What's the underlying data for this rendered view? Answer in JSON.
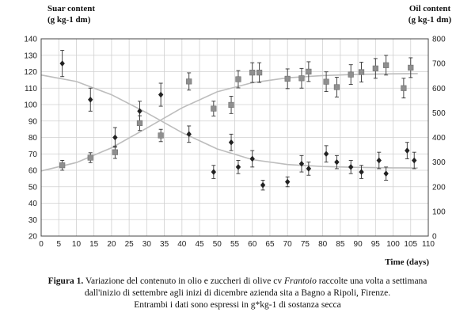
{
  "chart_data": {
    "type": "scatter",
    "left_axis_title": [
      "Suar content",
      "(g kg-1 dm)"
    ],
    "right_axis_title": [
      "Oil content",
      "(g kg-1 dm)"
    ],
    "x_axis_title": "Time (days)",
    "xlim": [
      0,
      110
    ],
    "x_ticks": [
      0,
      5,
      10,
      15,
      20,
      25,
      30,
      35,
      40,
      45,
      50,
      55,
      60,
      65,
      70,
      75,
      80,
      85,
      90,
      95,
      100,
      105,
      110
    ],
    "ylim_left": [
      20,
      140
    ],
    "y_ticks_left": [
      20,
      30,
      40,
      50,
      60,
      70,
      80,
      90,
      100,
      110,
      120,
      130,
      140
    ],
    "ylim_right": [
      0,
      800
    ],
    "y_ticks_right": [
      0,
      100,
      200,
      300,
      400,
      500,
      600,
      700,
      800
    ],
    "grid": true,
    "series": [
      {
        "axis": "left",
        "marker": "diamond",
        "color": "#222222",
        "points": [
          {
            "x": 6,
            "y": 125,
            "err": 8
          },
          {
            "x": 14,
            "y": 103,
            "err": 7
          },
          {
            "x": 21,
            "y": 80,
            "err": 6
          },
          {
            "x": 28,
            "y": 96,
            "err": 6
          },
          {
            "x": 34,
            "y": 106,
            "err": 7
          },
          {
            "x": 42,
            "y": 82,
            "err": 5
          },
          {
            "x": 49,
            "y": 59,
            "err": 4
          },
          {
            "x": 54,
            "y": 77,
            "err": 5
          },
          {
            "x": 56,
            "y": 62,
            "err": 4
          },
          {
            "x": 60,
            "y": 67,
            "err": 5
          },
          {
            "x": 63,
            "y": 51,
            "err": 3
          },
          {
            "x": 70,
            "y": 53,
            "err": 3
          },
          {
            "x": 74,
            "y": 64,
            "err": 5
          },
          {
            "x": 76,
            "y": 61,
            "err": 4
          },
          {
            "x": 81,
            "y": 70,
            "err": 5
          },
          {
            "x": 84,
            "y": 65,
            "err": 4
          },
          {
            "x": 88,
            "y": 62,
            "err": 4
          },
          {
            "x": 91,
            "y": 59,
            "err": 4
          },
          {
            "x": 96,
            "y": 66,
            "err": 5
          },
          {
            "x": 98,
            "y": 58,
            "err": 4
          },
          {
            "x": 104,
            "y": 72,
            "err": 5
          },
          {
            "x": 106,
            "y": 66,
            "err": 5
          }
        ],
        "fit": [
          [
            0,
            118
          ],
          [
            10,
            114
          ],
          [
            20,
            106
          ],
          [
            30,
            95
          ],
          [
            40,
            83
          ],
          [
            50,
            73
          ],
          [
            60,
            66.5
          ],
          [
            70,
            63.5
          ],
          [
            80,
            62.3
          ],
          [
            90,
            61.8
          ],
          [
            100,
            61.5
          ],
          [
            107,
            61.4
          ]
        ]
      },
      {
        "axis": "right",
        "marker": "square",
        "color": "#8f8f8f",
        "points": [
          {
            "x": 6,
            "y": 287,
            "err": 20
          },
          {
            "x": 14,
            "y": 318,
            "err": 20
          },
          {
            "x": 21,
            "y": 340,
            "err": 25
          },
          {
            "x": 28,
            "y": 458,
            "err": 30
          },
          {
            "x": 34,
            "y": 408,
            "err": 25
          },
          {
            "x": 42,
            "y": 627,
            "err": 35
          },
          {
            "x": 49,
            "y": 517,
            "err": 30
          },
          {
            "x": 54,
            "y": 532,
            "err": 35
          },
          {
            "x": 56,
            "y": 636,
            "err": 35
          },
          {
            "x": 60,
            "y": 663,
            "err": 40
          },
          {
            "x": 62,
            "y": 663,
            "err": 40
          },
          {
            "x": 70,
            "y": 638,
            "err": 40
          },
          {
            "x": 74,
            "y": 640,
            "err": 40
          },
          {
            "x": 76,
            "y": 667,
            "err": 40
          },
          {
            "x": 81,
            "y": 626,
            "err": 40
          },
          {
            "x": 84,
            "y": 604,
            "err": 40
          },
          {
            "x": 88,
            "y": 655,
            "err": 40
          },
          {
            "x": 91,
            "y": 665,
            "err": 40
          },
          {
            "x": 95,
            "y": 680,
            "err": 40
          },
          {
            "x": 98,
            "y": 693,
            "err": 40
          },
          {
            "x": 103,
            "y": 600,
            "err": 40
          },
          {
            "x": 105,
            "y": 683,
            "err": 40
          }
        ],
        "fit": [
          [
            0,
            264
          ],
          [
            10,
            298
          ],
          [
            20,
            358
          ],
          [
            30,
            438
          ],
          [
            40,
            520
          ],
          [
            50,
            585
          ],
          [
            60,
            622
          ],
          [
            70,
            642
          ],
          [
            80,
            651
          ],
          [
            90,
            656
          ],
          [
            100,
            658
          ],
          [
            107,
            659
          ]
        ]
      }
    ]
  },
  "caption": {
    "label": "Figura 1.",
    "line1_a": " Variazione del contenuto in olio e zuccheri di olive cv ",
    "line1_italic": "Frantoio",
    "line1_b": " raccolte una volta a settimana",
    "line2": "dall'inizio di settembre agli inizi di dicembre azienda sita a Bagno a Ripoli, Firenze.",
    "line3": "Entrambi i dati sono espressi in g*kg-1 di sostanza secca"
  }
}
